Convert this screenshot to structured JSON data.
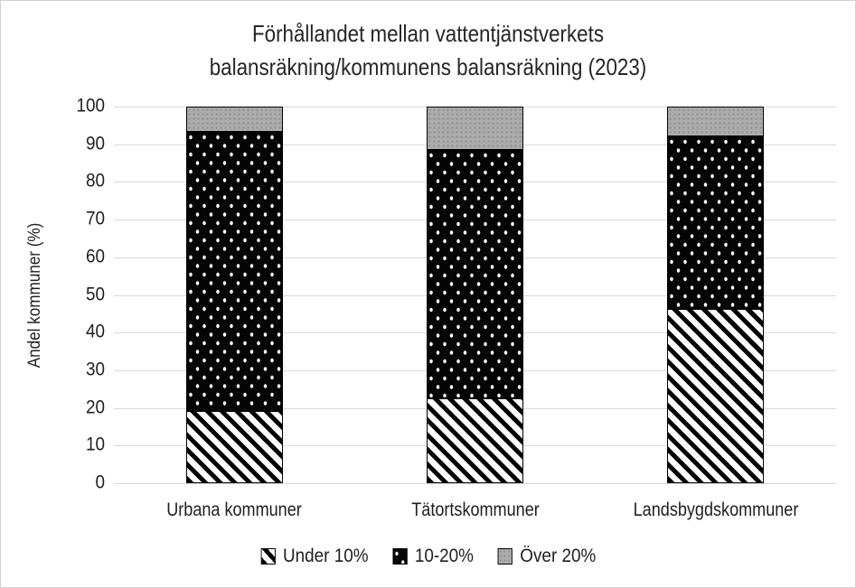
{
  "chart_data": {
    "type": "bar",
    "stacked": true,
    "title": "Förhållandet mellan vattentjänstverkets balansräkning/kommunens balansräkning (2023)",
    "title_lines": [
      "Förhållandet mellan vattentjänstverkets",
      "balansräkning/kommunens balansräkning (2023)"
    ],
    "ylabel": "Andel kommuner (%)",
    "xlabel": "",
    "categories": [
      "Urbana kommuner",
      "Tätortskommuner",
      "Landsbygdskommuner"
    ],
    "series": [
      {
        "name": "Under 10%",
        "pattern": "diagonal-stripes-black-on-white",
        "values": [
          19.2,
          22.6,
          46.2
        ]
      },
      {
        "name": "10-20%",
        "pattern": "white-dots-on-black",
        "values": [
          74.1,
          66.0,
          45.9
        ]
      },
      {
        "name": "Över 20%",
        "pattern": "solid-gray-textured",
        "values": [
          6.7,
          11.4,
          7.9
        ]
      }
    ],
    "ylim": [
      0,
      100
    ],
    "ytick_step": 10,
    "yticks": [
      100,
      90,
      80,
      70,
      60,
      50,
      40,
      30,
      20,
      10,
      0
    ],
    "grid": "horizontal",
    "legend_position": "bottom",
    "colors": {
      "gray_fill": "#ababab",
      "pattern_black": "#000000",
      "pattern_white": "#ffffff",
      "gridline": "#d9d9d9",
      "text": "#1f1f1f",
      "segment_border": "#000000",
      "chart_border": "#d2d2d2",
      "background": "#ffffff"
    }
  }
}
